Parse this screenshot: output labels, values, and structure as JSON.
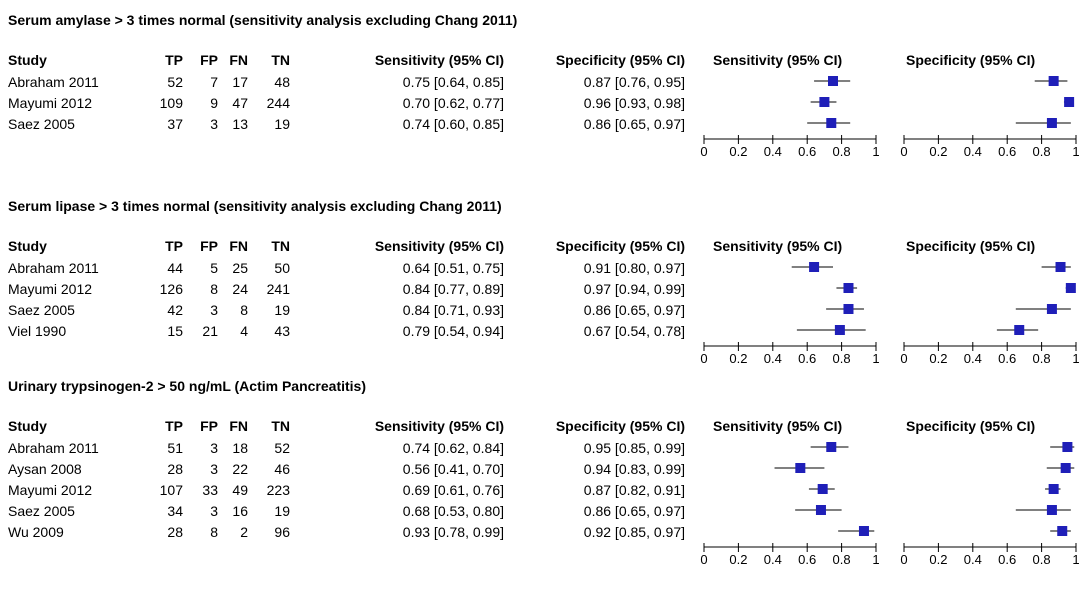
{
  "headers": {
    "study": "Study",
    "tp": "TP",
    "fp": "FP",
    "fn": "FN",
    "tn": "TN",
    "sens": "Sensitivity (95% CI)",
    "spec": "Specificity (95% CI)",
    "sens_plot": "Sensitivity (95% CI)",
    "spec_plot": "Specificity (95% CI)"
  },
  "axis_ticks": [
    "0",
    "0.2",
    "0.4",
    "0.6",
    "0.8",
    "1"
  ],
  "marker_color": "#1f1fb8",
  "chart_data": [
    {
      "type": "forest",
      "title": "Serum amylase > 3 times normal (sensitivity analysis excluding Chang 2011)",
      "xlim": [
        0,
        1
      ],
      "rows": [
        {
          "study": "Abraham 2011",
          "tp": "52",
          "fp": "7",
          "fn": "17",
          "tn": "48",
          "sens": 0.75,
          "sens_lo": 0.64,
          "sens_hi": 0.85,
          "spec": 0.87,
          "spec_lo": 0.76,
          "spec_hi": 0.95,
          "sens_text": "0.75 [0.64, 0.85]",
          "spec_text": "0.87 [0.76, 0.95]"
        },
        {
          "study": "Mayumi 2012",
          "tp": "109",
          "fp": "9",
          "fn": "47",
          "tn": "244",
          "sens": 0.7,
          "sens_lo": 0.62,
          "sens_hi": 0.77,
          "spec": 0.96,
          "spec_lo": 0.93,
          "spec_hi": 0.98,
          "sens_text": "0.70 [0.62, 0.77]",
          "spec_text": "0.96 [0.93, 0.98]"
        },
        {
          "study": "Saez 2005",
          "tp": "37",
          "fp": "3",
          "fn": "13",
          "tn": "19",
          "sens": 0.74,
          "sens_lo": 0.6,
          "sens_hi": 0.85,
          "spec": 0.86,
          "spec_lo": 0.65,
          "spec_hi": 0.97,
          "sens_text": "0.74 [0.60, 0.85]",
          "spec_text": "0.86 [0.65, 0.97]"
        }
      ]
    },
    {
      "type": "forest",
      "title": "Serum lipase > 3 times normal (sensitivity analysis excluding Chang 2011)",
      "xlim": [
        0,
        1
      ],
      "rows": [
        {
          "study": "Abraham 2011",
          "tp": "44",
          "fp": "5",
          "fn": "25",
          "tn": "50",
          "sens": 0.64,
          "sens_lo": 0.51,
          "sens_hi": 0.75,
          "spec": 0.91,
          "spec_lo": 0.8,
          "spec_hi": 0.97,
          "sens_text": "0.64 [0.51, 0.75]",
          "spec_text": "0.91 [0.80, 0.97]"
        },
        {
          "study": "Mayumi 2012",
          "tp": "126",
          "fp": "8",
          "fn": "24",
          "tn": "241",
          "sens": 0.84,
          "sens_lo": 0.77,
          "sens_hi": 0.89,
          "spec": 0.97,
          "spec_lo": 0.94,
          "spec_hi": 0.99,
          "sens_text": "0.84 [0.77, 0.89]",
          "spec_text": "0.97 [0.94, 0.99]"
        },
        {
          "study": "Saez 2005",
          "tp": "42",
          "fp": "3",
          "fn": "8",
          "tn": "19",
          "sens": 0.84,
          "sens_lo": 0.71,
          "sens_hi": 0.93,
          "spec": 0.86,
          "spec_lo": 0.65,
          "spec_hi": 0.97,
          "sens_text": "0.84 [0.71, 0.93]",
          "spec_text": "0.86 [0.65, 0.97]"
        },
        {
          "study": "Viel 1990",
          "tp": "15",
          "fp": "21",
          "fn": "4",
          "tn": "43",
          "sens": 0.79,
          "sens_lo": 0.54,
          "sens_hi": 0.94,
          "spec": 0.67,
          "spec_lo": 0.54,
          "spec_hi": 0.78,
          "sens_text": "0.79 [0.54, 0.94]",
          "spec_text": "0.67 [0.54, 0.78]"
        }
      ]
    },
    {
      "type": "forest",
      "title": "Urinary trypsinogen-2 > 50 ng/mL (Actim Pancreatitis)",
      "xlim": [
        0,
        1
      ],
      "rows": [
        {
          "study": "Abraham 2011",
          "tp": "51",
          "fp": "3",
          "fn": "18",
          "tn": "52",
          "sens": 0.74,
          "sens_lo": 0.62,
          "sens_hi": 0.84,
          "spec": 0.95,
          "spec_lo": 0.85,
          "spec_hi": 0.99,
          "sens_text": "0.74 [0.62, 0.84]",
          "spec_text": "0.95 [0.85, 0.99]"
        },
        {
          "study": "Aysan 2008",
          "tp": "28",
          "fp": "3",
          "fn": "22",
          "tn": "46",
          "sens": 0.56,
          "sens_lo": 0.41,
          "sens_hi": 0.7,
          "spec": 0.94,
          "spec_lo": 0.83,
          "spec_hi": 0.99,
          "sens_text": "0.56 [0.41, 0.70]",
          "spec_text": "0.94 [0.83, 0.99]"
        },
        {
          "study": "Mayumi 2012",
          "tp": "107",
          "fp": "33",
          "fn": "49",
          "tn": "223",
          "sens": 0.69,
          "sens_lo": 0.61,
          "sens_hi": 0.76,
          "spec": 0.87,
          "spec_lo": 0.82,
          "spec_hi": 0.91,
          "sens_text": "0.69 [0.61, 0.76]",
          "spec_text": "0.87 [0.82, 0.91]"
        },
        {
          "study": "Saez 2005",
          "tp": "34",
          "fp": "3",
          "fn": "16",
          "tn": "19",
          "sens": 0.68,
          "sens_lo": 0.53,
          "sens_hi": 0.8,
          "spec": 0.86,
          "spec_lo": 0.65,
          "spec_hi": 0.97,
          "sens_text": "0.68 [0.53, 0.80]",
          "spec_text": "0.86 [0.65, 0.97]"
        },
        {
          "study": "Wu 2009",
          "tp": "28",
          "fp": "8",
          "fn": "2",
          "tn": "96",
          "sens": 0.93,
          "sens_lo": 0.78,
          "sens_hi": 0.99,
          "spec": 0.92,
          "spec_lo": 0.85,
          "spec_hi": 0.97,
          "sens_text": "0.93 [0.78, 0.99]",
          "spec_text": "0.92 [0.85, 0.97]"
        }
      ]
    }
  ]
}
